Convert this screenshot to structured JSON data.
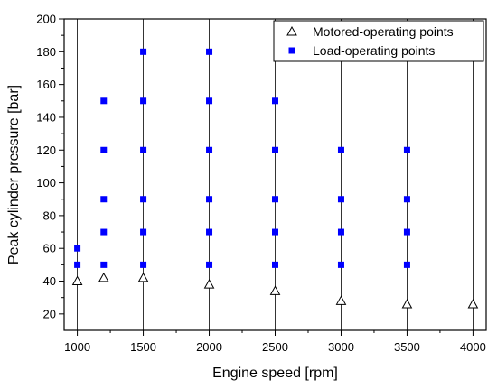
{
  "chart_data": {
    "type": "scatter",
    "xlabel": "Engine speed [rpm]",
    "ylabel": "Peak cylinder pressure [bar]",
    "xlim": [
      900,
      4100
    ],
    "ylim": [
      10,
      200
    ],
    "xticks": [
      1000,
      1500,
      2000,
      2500,
      3000,
      3500,
      4000
    ],
    "yticks": [
      20,
      40,
      60,
      80,
      100,
      120,
      140,
      160,
      180,
      200
    ],
    "x_minor_ticks": [
      1250,
      1750,
      2250,
      2750,
      3250,
      3750
    ],
    "y_minor_ticks": [
      30,
      50,
      70,
      90,
      110,
      130,
      150,
      170,
      190
    ],
    "grid": "vertical-major",
    "legend_position": "top-right",
    "series": [
      {
        "name": "Motored-operating points",
        "marker": "open-triangle",
        "color": "#000000",
        "points": [
          [
            1000,
            40
          ],
          [
            1200,
            42
          ],
          [
            1500,
            42
          ],
          [
            2000,
            38
          ],
          [
            2500,
            34
          ],
          [
            3000,
            28
          ],
          [
            3500,
            26
          ],
          [
            4000,
            26
          ]
        ]
      },
      {
        "name": "Load-operating points",
        "marker": "filled-square",
        "color": "#0000ff",
        "points": [
          [
            1000,
            50
          ],
          [
            1000,
            60
          ],
          [
            1200,
            50
          ],
          [
            1200,
            70
          ],
          [
            1200,
            90
          ],
          [
            1200,
            120
          ],
          [
            1200,
            150
          ],
          [
            1500,
            50
          ],
          [
            1500,
            70
          ],
          [
            1500,
            90
          ],
          [
            1500,
            120
          ],
          [
            1500,
            150
          ],
          [
            1500,
            180
          ],
          [
            2000,
            50
          ],
          [
            2000,
            70
          ],
          [
            2000,
            90
          ],
          [
            2000,
            120
          ],
          [
            2000,
            150
          ],
          [
            2000,
            180
          ],
          [
            2500,
            50
          ],
          [
            2500,
            70
          ],
          [
            2500,
            90
          ],
          [
            2500,
            120
          ],
          [
            2500,
            150
          ],
          [
            3000,
            50
          ],
          [
            3000,
            70
          ],
          [
            3000,
            90
          ],
          [
            3000,
            120
          ],
          [
            3500,
            50
          ],
          [
            3500,
            70
          ],
          [
            3500,
            90
          ],
          [
            3500,
            120
          ]
        ]
      }
    ]
  }
}
